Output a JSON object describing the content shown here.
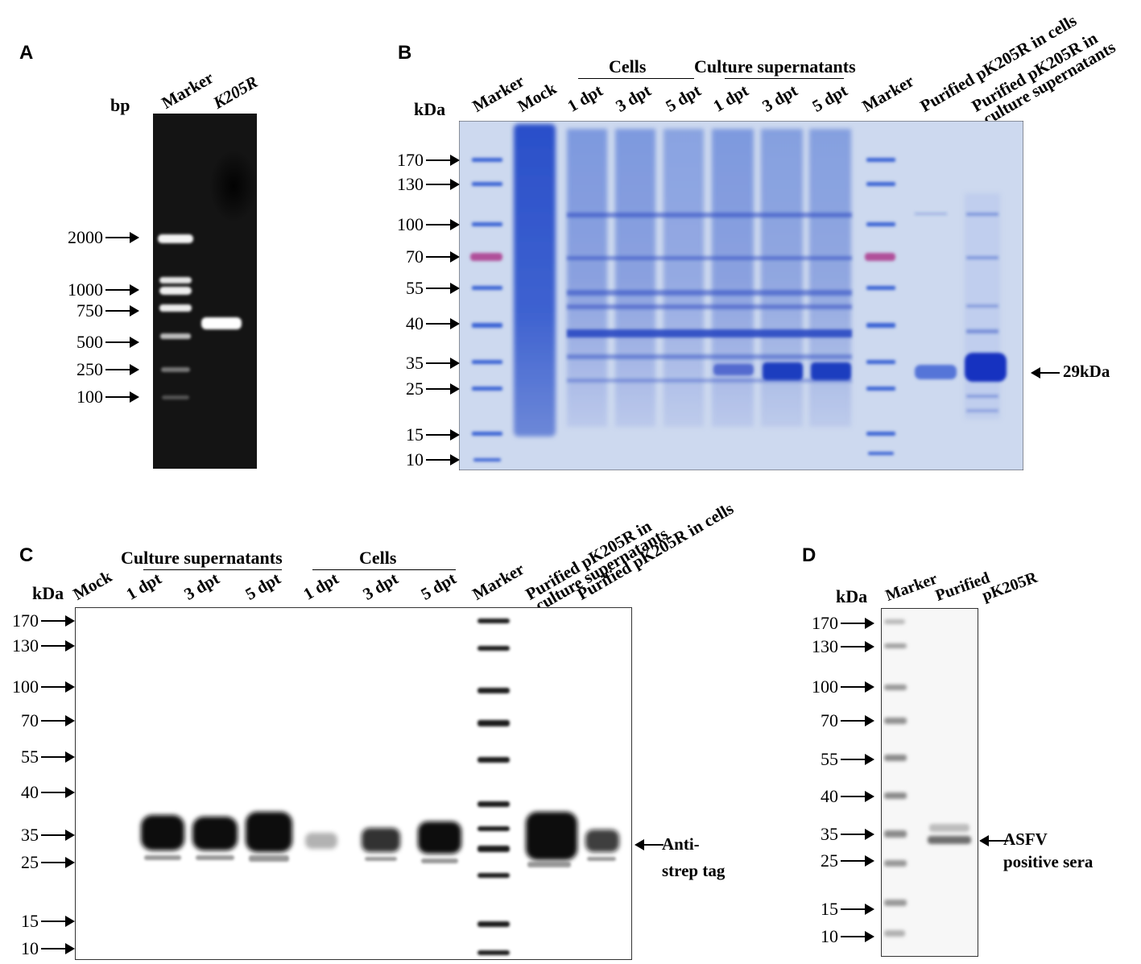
{
  "panels": {
    "A": {
      "letter": "A",
      "unit": "bp",
      "lanes": [
        "Marker",
        "K205R"
      ],
      "ladder": [
        "2000",
        "1000",
        "750",
        "500",
        "250",
        "100"
      ]
    },
    "B": {
      "letter": "B",
      "unit": "kDa",
      "lanes": [
        "Marker",
        "Mock",
        "1 dpt",
        "3 dpt",
        "5 dpt",
        "1 dpt",
        "3 dpt",
        "5 dpt",
        "Marker",
        "Purified pK205R in cells",
        "Purified pK205R in",
        "culture supernatants"
      ],
      "groups": [
        "Cells",
        "Culture supernatants"
      ],
      "ladder": [
        "170",
        "130",
        "100",
        "70",
        "55",
        "40",
        "35",
        "25",
        "15",
        "10"
      ],
      "band_label": "29kDa"
    },
    "C": {
      "letter": "C",
      "unit": "kDa",
      "lanes": [
        "Mock",
        "1 dpt",
        "3 dpt",
        "5 dpt",
        "1 dpt",
        "3 dpt",
        "5 dpt",
        "Marker",
        "Purified pK205R in",
        "culture supernatants",
        "Purified pK205R in cells"
      ],
      "groups": [
        "Culture supernatants",
        "Cells"
      ],
      "ladder": [
        "170",
        "130",
        "100",
        "70",
        "55",
        "40",
        "35",
        "25",
        "15",
        "10"
      ],
      "band_label_1": "Anti-",
      "band_label_2": "strep tag"
    },
    "D": {
      "letter": "D",
      "unit": "kDa",
      "lanes": [
        "Marker",
        "Purified",
        "pK205R"
      ],
      "ladder": [
        "170",
        "130",
        "100",
        "70",
        "55",
        "40",
        "35",
        "25",
        "15",
        "10"
      ],
      "band_label_1": "ASFV",
      "band_label_2": "positive sera"
    }
  },
  "colors": {
    "agarose_bg": "#141414",
    "coomassie_bg": "#cdd9ef",
    "coomassie_stain": "#2748c4",
    "blot_bg": "#ffffff",
    "blot_band": "#111111",
    "marker_pink": "#b0509a"
  }
}
